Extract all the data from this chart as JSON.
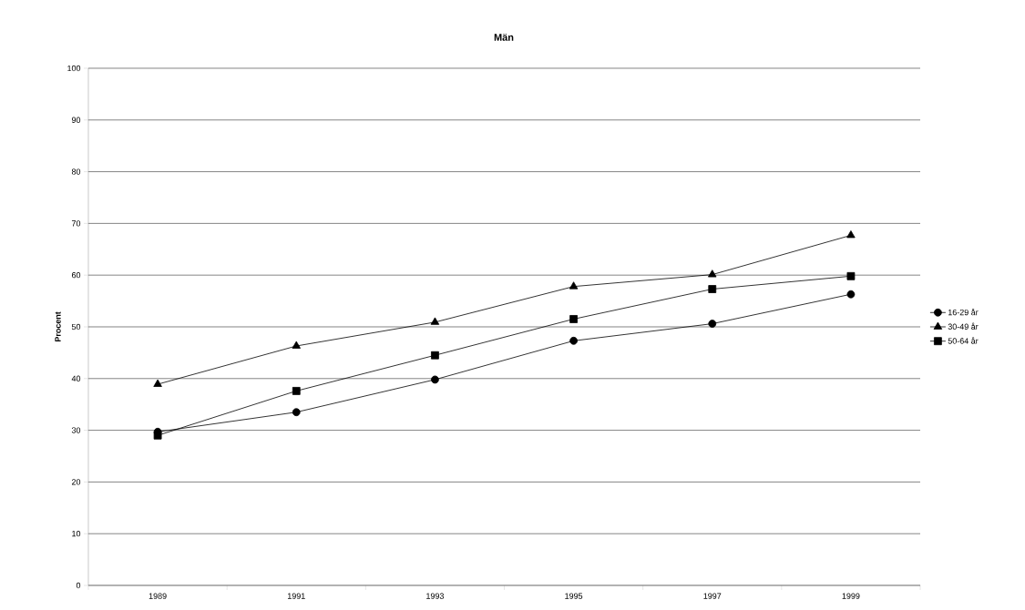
{
  "chart_data": {
    "type": "line",
    "title": "Män",
    "ylabel": "Procent",
    "categories": [
      "1989",
      "1991",
      "1993",
      "1995",
      "1997",
      "1999"
    ],
    "series": [
      {
        "name": "16-29 år",
        "color": "#000000",
        "marker": "circle",
        "values": [
          29.7,
          33.5,
          39.8,
          47.3,
          50.6,
          56.3
        ]
      },
      {
        "name": "30-49 år",
        "color": "#000000",
        "marker": "triangle",
        "values": [
          38.9,
          46.3,
          50.9,
          57.8,
          60.1,
          67.7
        ]
      },
      {
        "name": "50-64 år",
        "color": "#000000",
        "marker": "square",
        "values": [
          29.0,
          37.6,
          44.5,
          51.5,
          57.3,
          59.8
        ]
      }
    ],
    "ylim": [
      0,
      100
    ],
    "yticks": [
      0,
      10,
      20,
      30,
      40,
      50,
      60,
      70,
      80,
      90,
      100
    ],
    "grid": "y",
    "legend": "right",
    "line_style": "solid"
  }
}
